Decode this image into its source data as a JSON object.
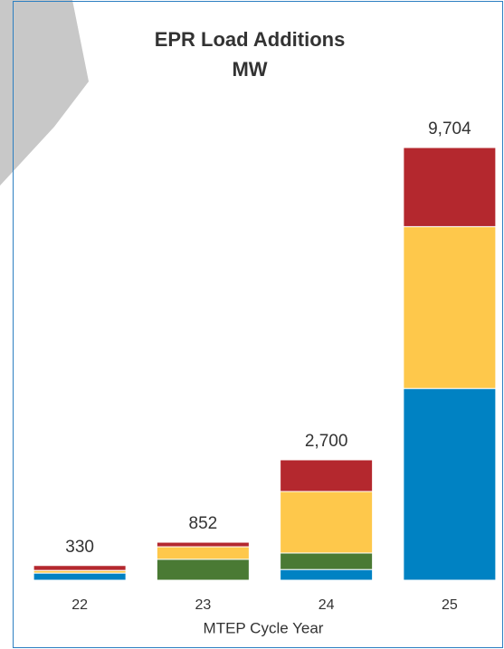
{
  "chart_data": {
    "type": "stacked-bar",
    "title": "EPR Load Additions",
    "subtitle": "MW",
    "x_label": "MTEP Cycle Year",
    "categories": [
      "22",
      "23",
      "24",
      "25"
    ],
    "series": [
      {
        "color": "#0082c3",
        "values": [
          160,
          0,
          240,
          4300
        ]
      },
      {
        "color": "#4a7a34",
        "values": [
          0,
          470,
          370,
          0
        ]
      },
      {
        "color": "#fec84b",
        "values": [
          60,
          280,
          1380,
          3630
        ]
      },
      {
        "color": "#b4282e",
        "values": [
          110,
          102,
          710,
          1774
        ]
      }
    ],
    "totals": [
      330,
      852,
      2700,
      9704
    ],
    "total_labels": [
      "330",
      "852",
      "2,700",
      "9,704"
    ]
  }
}
